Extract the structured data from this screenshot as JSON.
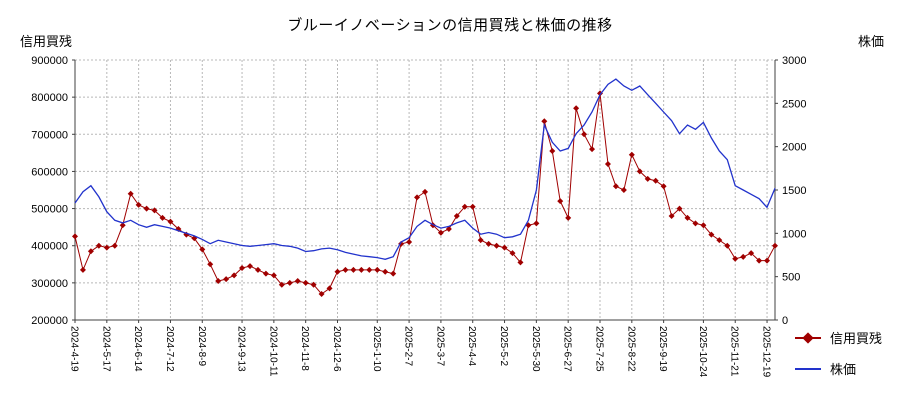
{
  "chart_data": {
    "type": "line",
    "title": "ブルーイノベーションの信用買残と株価の推移",
    "grid": true,
    "grid_color": "#b8b8b8",
    "axis_color": "#404040",
    "legend_position": "bottom-right",
    "x_label_rotation": 90,
    "left_axis": {
      "label": "信用買残",
      "min": 200000,
      "max": 900000,
      "step": 100000
    },
    "right_axis": {
      "label": "株価",
      "min": 0,
      "max": 3000,
      "step": 500
    },
    "x_tick_labels": [
      "2024-4-19",
      "2024-5-17",
      "2024-6-14",
      "2024-7-12",
      "2024-8-9",
      "2024-9-13",
      "2024-10-11",
      "2024-11-8",
      "2024-12-6",
      "2025-1-10",
      "2025-2-7",
      "2025-3-7",
      "2025-4-4",
      "2025-5-2",
      "2025-5-30",
      "2025-6-27",
      "2025-7-25",
      "2025-8-22",
      "2025-9-19",
      "2025-10-24",
      "2025-11-21",
      "2025-12-19"
    ],
    "x_tick_indices": [
      0,
      4,
      8,
      12,
      16,
      21,
      25,
      29,
      33,
      38,
      42,
      46,
      50,
      54,
      58,
      62,
      66,
      70,
      74,
      79,
      83,
      87
    ],
    "series": [
      {
        "name": "信用買残",
        "data_name": "margin-series",
        "axis": "left",
        "color": "#a00000",
        "marker": "diamond",
        "values": [
          425000,
          335000,
          385000,
          400000,
          395000,
          400000,
          455000,
          540000,
          510000,
          500000,
          495000,
          475000,
          465000,
          445000,
          430000,
          420000,
          390000,
          350000,
          305000,
          310000,
          320000,
          340000,
          345000,
          335000,
          325000,
          320000,
          295000,
          300000,
          305000,
          300000,
          295000,
          270000,
          285000,
          330000,
          335000,
          335000,
          335000,
          335000,
          335000,
          330000,
          325000,
          405000,
          410000,
          530000,
          545000,
          455000,
          435000,
          445000,
          480000,
          505000,
          505000,
          415000,
          405000,
          400000,
          395000,
          380000,
          355000,
          455000,
          460000,
          735000,
          655000,
          520000,
          475000,
          770000,
          700000,
          660000,
          810000,
          620000,
          560000,
          550000,
          645000,
          600000,
          580000,
          575000,
          560000,
          480000,
          500000,
          475000,
          460000,
          455000,
          430000,
          415000,
          400000,
          365000,
          370000,
          380000,
          360000,
          360000,
          400000
        ]
      },
      {
        "name": "株価",
        "data_name": "price-series",
        "axis": "right",
        "color": "#2233cc",
        "marker": "none",
        "values": [
          1350,
          1480,
          1550,
          1420,
          1250,
          1150,
          1120,
          1150,
          1100,
          1070,
          1100,
          1080,
          1060,
          1030,
          1000,
          970,
          930,
          880,
          920,
          900,
          880,
          860,
          850,
          860,
          870,
          880,
          860,
          850,
          830,
          790,
          800,
          820,
          830,
          810,
          780,
          760,
          740,
          730,
          720,
          700,
          730,
          900,
          950,
          1080,
          1150,
          1100,
          1060,
          1080,
          1120,
          1150,
          1060,
          990,
          1010,
          990,
          950,
          960,
          990,
          1150,
          1500,
          2250,
          2050,
          1950,
          1980,
          2150,
          2250,
          2400,
          2600,
          2720,
          2780,
          2700,
          2650,
          2700,
          2600,
          2500,
          2400,
          2300,
          2150,
          2250,
          2200,
          2280,
          2100,
          1950,
          1850,
          1550,
          1500,
          1450,
          1400,
          1300,
          1520
        ]
      }
    ]
  }
}
